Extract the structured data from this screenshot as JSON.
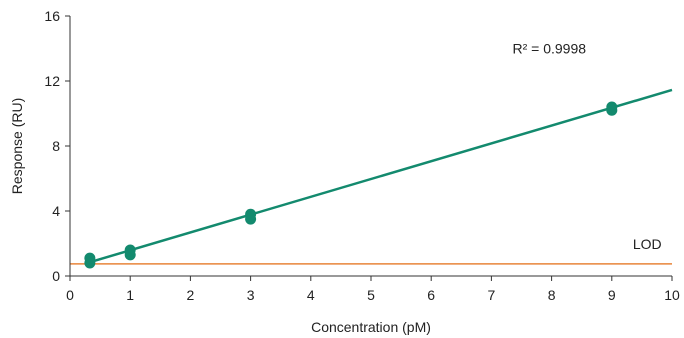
{
  "chart_data": {
    "type": "scatter",
    "xlabel": "Concentration (pM)",
    "ylabel": "Response (RU)",
    "xlim": [
      0,
      10
    ],
    "ylim": [
      0,
      16
    ],
    "x_ticks": [
      "0",
      "1",
      "2",
      "3",
      "4",
      "5",
      "6",
      "7",
      "8",
      "9",
      "10"
    ],
    "y_ticks": [
      "0",
      "4",
      "8",
      "12",
      "16"
    ],
    "grid": false,
    "points": [
      {
        "x": 0.33,
        "y": 1.1
      },
      {
        "x": 0.33,
        "y": 0.8
      },
      {
        "x": 1,
        "y": 1.6
      },
      {
        "x": 1,
        "y": 1.3
      },
      {
        "x": 3,
        "y": 3.8
      },
      {
        "x": 3,
        "y": 3.5
      },
      {
        "x": 9,
        "y": 10.4
      },
      {
        "x": 9,
        "y": 10.2
      }
    ],
    "fit_line": {
      "x": [
        0.33,
        10
      ],
      "y": [
        0.85,
        11.45
      ]
    },
    "lod": {
      "label": "LOD",
      "value": 0.75
    },
    "annotation": "R² = 0.9998",
    "colors": {
      "points": "#138a6e",
      "fit": "#138a6e",
      "lod": "#e8843a",
      "axis": "#333333"
    }
  }
}
